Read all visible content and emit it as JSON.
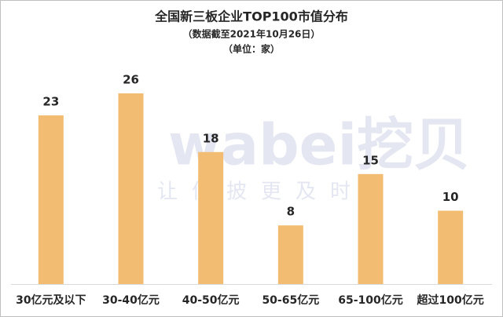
{
  "chart_data": {
    "type": "bar",
    "title": "全国新三板企业TOP100市值分布",
    "subtitle": "（数据截至2021年10月26日）",
    "unit_note": "（单位：家）",
    "watermark": "wabei挖贝",
    "watermark_slogan": "让信披更及时",
    "categories": [
      "30亿元及以下",
      "30-40亿元",
      "40-50亿元",
      "50-65亿元",
      "65-100亿元",
      "超过100亿元"
    ],
    "values": [
      23,
      26,
      18,
      8,
      15,
      10
    ],
    "color": "#f2bd72"
  }
}
